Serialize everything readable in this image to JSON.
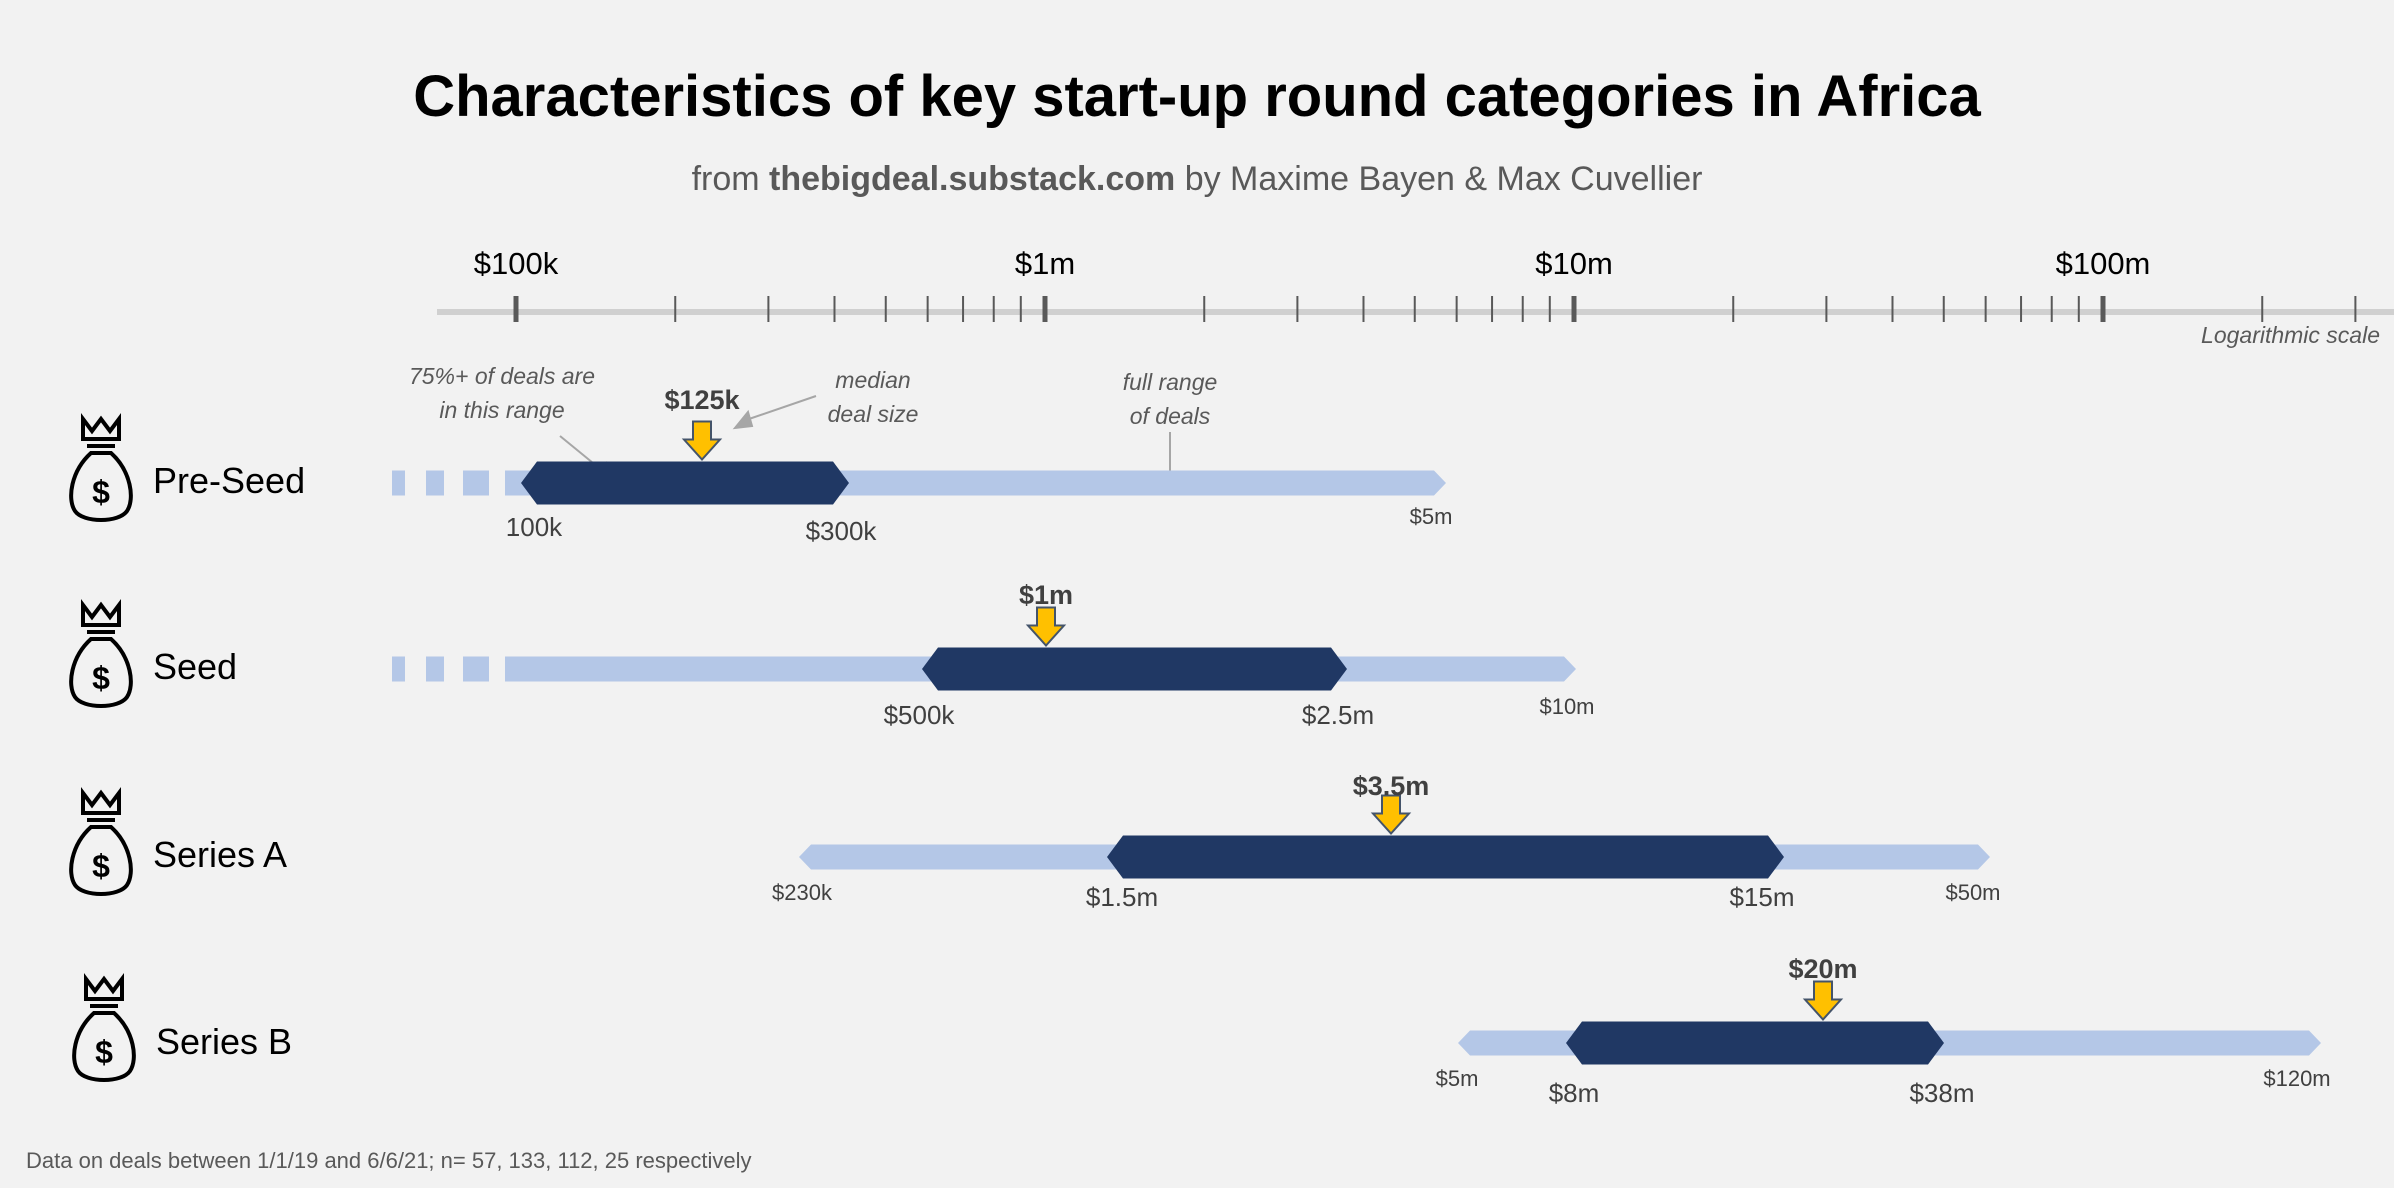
{
  "chart_data": {
    "type": "range",
    "title": "Characteristics of key start-up round categories in Africa",
    "subtitle": {
      "prefix": "from ",
      "source": "thebigdeal.substack.com",
      "suffix": " by Maxime Bayen & Max Cuvellier"
    },
    "axis": {
      "scale": "log",
      "scale_note": "Logarithmic scale",
      "ticks": [
        {
          "value": 100000,
          "label": "$100k"
        },
        {
          "value": 1000000,
          "label": "$1m"
        },
        {
          "value": 10000000,
          "label": "$10m"
        },
        {
          "value": 100000000,
          "label": "$100m"
        }
      ]
    },
    "annotations": {
      "core_range": [
        "75%+ of deals are",
        "in this range"
      ],
      "median": [
        "median",
        "deal size"
      ],
      "full_range": [
        "full range",
        "of deals"
      ]
    },
    "rounds": [
      {
        "name": "Pre-Seed",
        "full_min": null,
        "full_max": 5000000,
        "full_max_label": "$5m",
        "full_min_label": "",
        "core_min": 100000,
        "core_min_label": "100k",
        "core_max": 300000,
        "core_max_label": "$300k",
        "median": 125000,
        "median_label": "$125k",
        "open_left": true
      },
      {
        "name": "Seed",
        "full_min": null,
        "full_max": 10000000,
        "full_max_label": "$10m",
        "full_min_label": "",
        "core_min": 500000,
        "core_min_label": "$500k",
        "core_max": 2500000,
        "core_max_label": "$2.5m",
        "median": 1000000,
        "median_label": "$1m",
        "open_left": true
      },
      {
        "name": "Series A",
        "full_min": 230000,
        "full_min_label": "$230k",
        "full_max": 50000000,
        "full_max_label": "$50m",
        "core_min": 1500000,
        "core_min_label": "$1.5m",
        "core_max": 15000000,
        "core_max_label": "$15m",
        "median": 3500000,
        "median_label": "$3.5m",
        "open_left": false
      },
      {
        "name": "Series B",
        "full_min": 5000000,
        "full_min_label": "$5m",
        "full_max": 120000000,
        "full_max_label": "$120m",
        "core_min": 8000000,
        "core_min_label": "$8m",
        "core_max": 38000000,
        "core_max_label": "$38m",
        "median": 20000000,
        "median_label": "$20m",
        "open_left": false
      }
    ],
    "footnote": "Data on deals between 1/1/19 and 6/6/21; n= 57, 133, 112, 25 respectively",
    "colors": {
      "full_range": "#b4c7e7",
      "core_range": "#203864",
      "median_arrow": "#ffc000",
      "axis": "#d0d0d0",
      "tick": "#595959"
    }
  }
}
